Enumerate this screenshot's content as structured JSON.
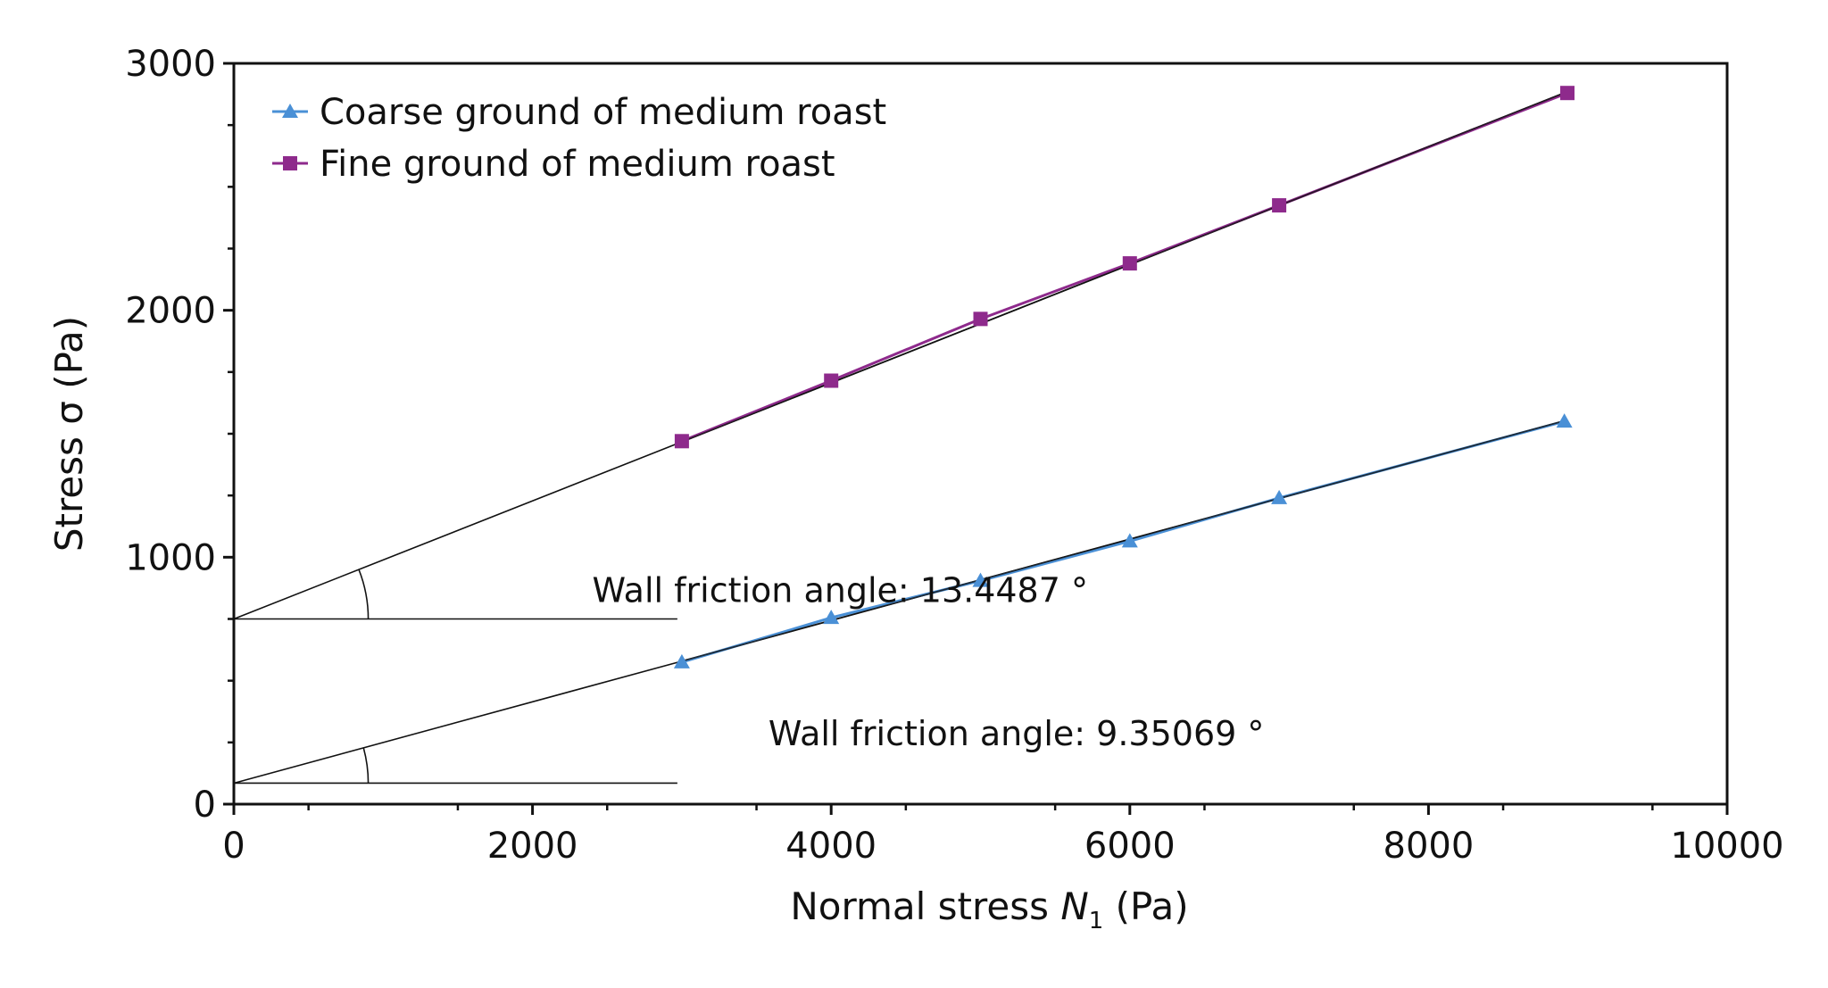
{
  "chart_data": {
    "type": "line",
    "title": "",
    "xlabel": "Normal stress",
    "xlabel_symbol": "N",
    "xlabel_sub": "1",
    "xlabel_unit": "(Pa)",
    "ylabel": "Stress σ (Pa)",
    "xlim": [
      0,
      10000
    ],
    "ylim": [
      0,
      3000
    ],
    "xticks": [
      0,
      2000,
      4000,
      6000,
      8000,
      10000
    ],
    "xtick_labels": [
      "0",
      "2000",
      "4000",
      "6000",
      "8000",
      "10000"
    ],
    "yticks": [
      0,
      1000,
      2000,
      3000
    ],
    "ytick_labels": [
      "0",
      "1000",
      "2000",
      "3000"
    ],
    "grid": false,
    "legend_position": "top-left",
    "series": [
      {
        "name": "Coarse ground of medium roast",
        "color": "#4a90d6",
        "marker": "triangle",
        "x": [
          3000,
          4000,
          5000,
          6000,
          7000,
          8910
        ],
        "y": [
          575,
          755,
          905,
          1065,
          1240,
          1550
        ],
        "fit": {
          "intercept": 85,
          "slope": 0.1647,
          "x_end": 8910
        }
      },
      {
        "name": "Fine ground of medium roast",
        "color": "#8e2a8c",
        "marker": "square",
        "x": [
          3000,
          4000,
          5000,
          6000,
          7000,
          8930
        ],
        "y": [
          1470,
          1715,
          1965,
          2190,
          2425,
          2880
        ],
        "fit": {
          "intercept": 750,
          "slope": 0.2391,
          "x_end": 8930
        }
      }
    ],
    "annotations": [
      {
        "text": "Wall friction angle: 13.4487 °",
        "x": 2400,
        "y": 870,
        "series": 1
      },
      {
        "text": "Wall friction angle: 9.35069 °",
        "x": 3580,
        "y": 290,
        "series": 0
      }
    ]
  }
}
